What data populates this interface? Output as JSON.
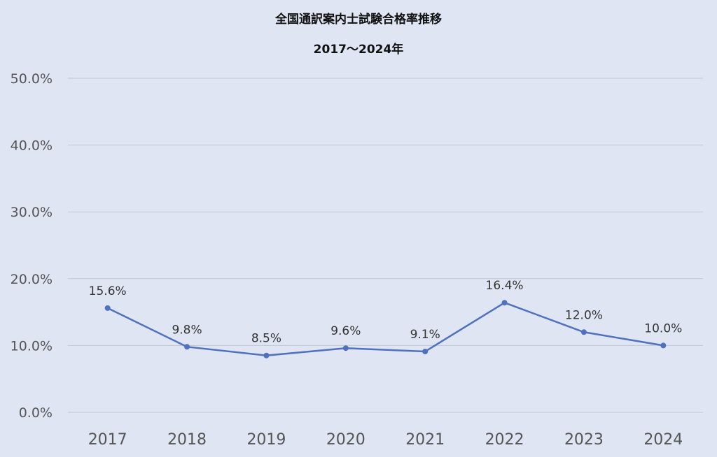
{
  "chart_data": {
    "type": "line",
    "title": "全国通訳案内士試験合格率推移",
    "subtitle": "2017〜2024年",
    "xlabel": "",
    "ylabel": "",
    "categories": [
      "2017",
      "2018",
      "2019",
      "2020",
      "2021",
      "2022",
      "2023",
      "2024"
    ],
    "series": [
      {
        "values": [
          15.6,
          9.8,
          8.5,
          9.6,
          9.1,
          16.4,
          12.0,
          10.0
        ],
        "data_labels": [
          "15.6%",
          "9.8%",
          "8.5%",
          "9.6%",
          "9.1%",
          "16.4%",
          "12.0%",
          "10.0%"
        ],
        "color": "#4f71be"
      }
    ],
    "ylim": [
      0,
      50
    ],
    "yticks": [
      0,
      10,
      20,
      30,
      40,
      50
    ],
    "ytick_labels": [
      "0.0%",
      "10.0%",
      "20.0%",
      "30.0%",
      "40.0%",
      "50.0%"
    ],
    "grid": true,
    "legend": "none",
    "background_color": "#dfe5f3",
    "grid_color": "#c3c8d2"
  }
}
